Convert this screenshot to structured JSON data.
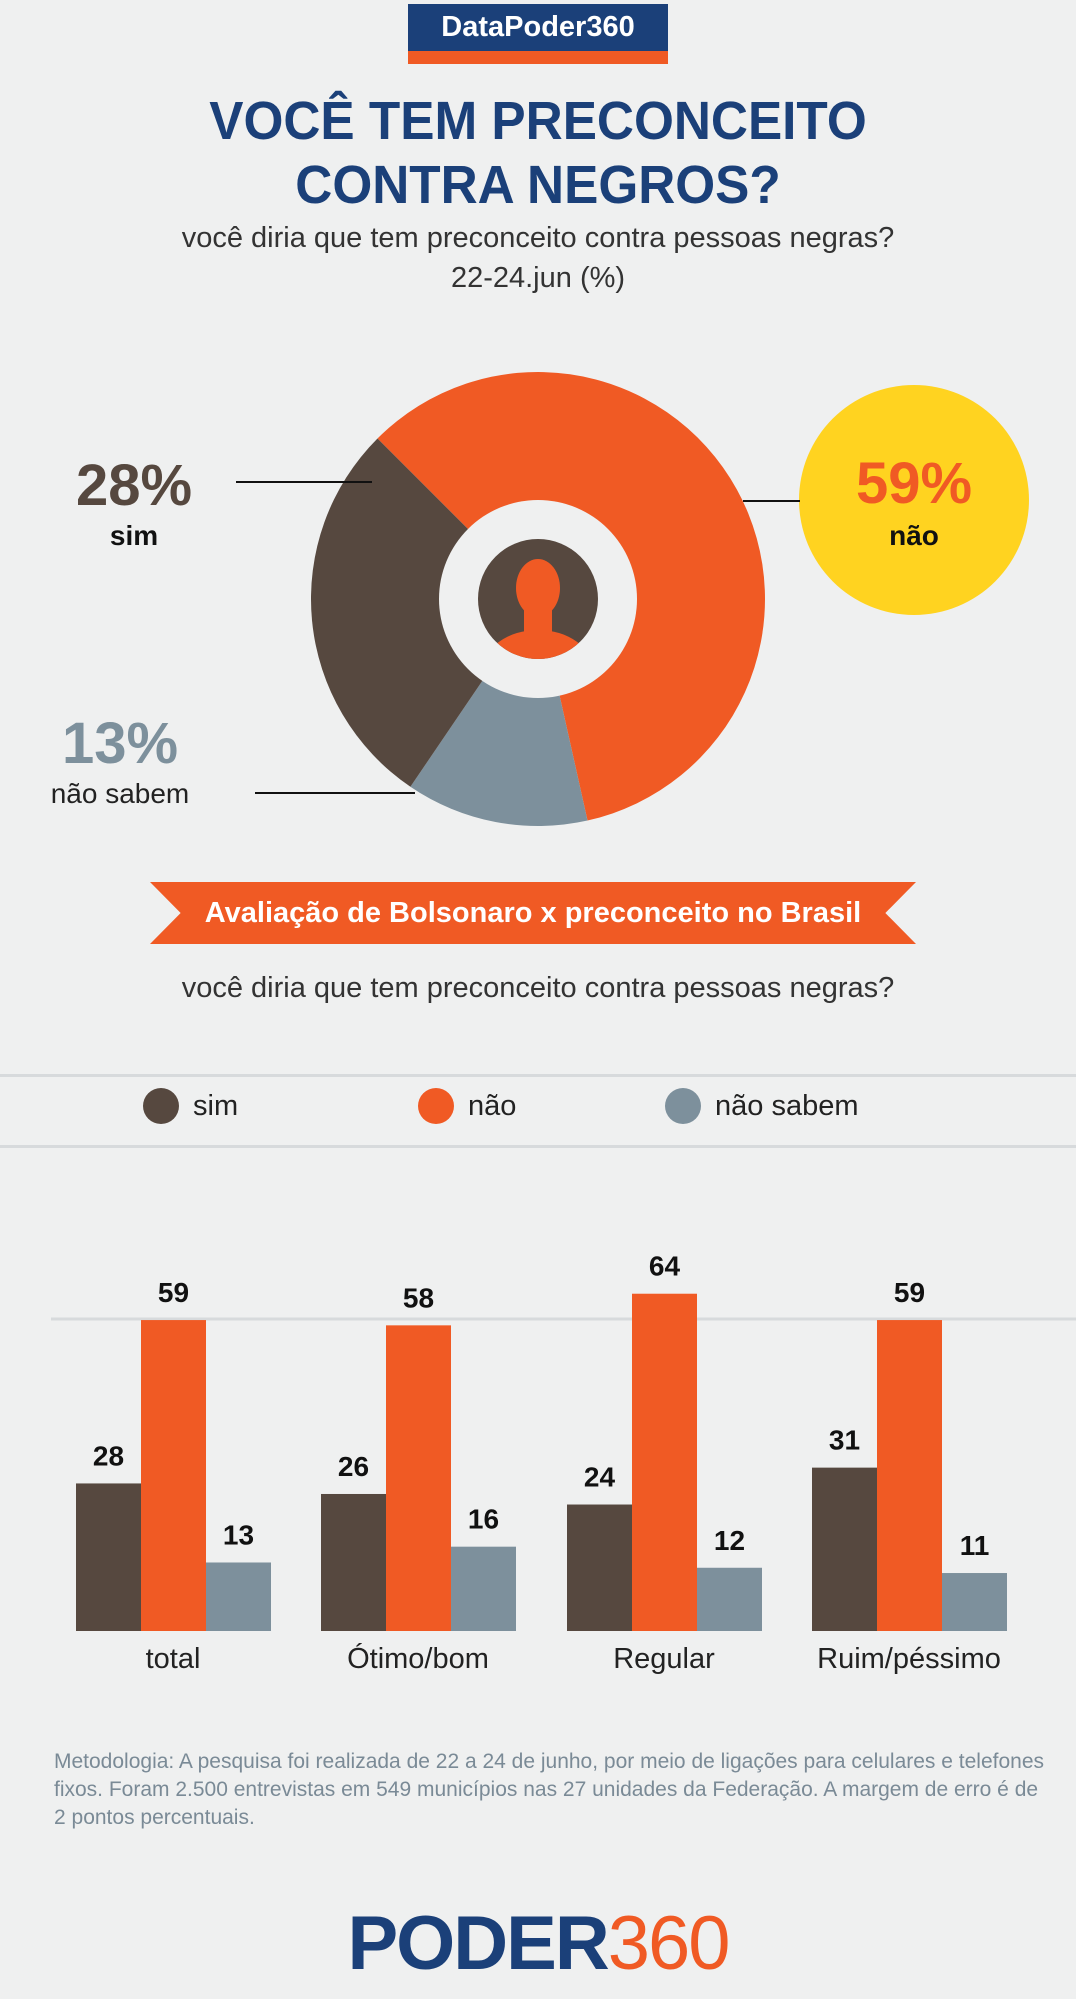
{
  "header": {
    "brand": "DataPoder360",
    "title_line1": "VOCÊ TEM PRECONCEITO",
    "title_line2": "CONTRA NEGROS?",
    "question": "você diria que tem preconceito contra pessoas negras?",
    "date": "22-24.jun (%)"
  },
  "colors": {
    "sim": "#56483f",
    "nao": "#f05a24",
    "nao_sabem": "#7d909c",
    "highlight": "#ffd320",
    "navy": "#1b4079"
  },
  "center_icon": "person-silhouette-icon",
  "section": {
    "banner": "Avaliação de Bolsonaro x preconceito no Brasil",
    "question": "você diria que tem preconceito contra pessoas negras?"
  },
  "footer": {
    "methodology": "Metodologia: A pesquisa foi realizada de 22 a 24 de junho, por meio de ligações  para celulares e telefones fixos. Foram 2.500 entrevistas em 549 municípios nas 27 unidades da Federação. A margem de erro é de 2 pontos percentuais.",
    "logo_part1": "PODER",
    "logo_part2": "360"
  },
  "chart_data": [
    {
      "type": "pie",
      "title": "VOCÊ TEM PRECONCEITO CONTRA NEGROS?",
      "slices": [
        {
          "key": "nao",
          "label": "não",
          "value": 59,
          "display": "59%"
        },
        {
          "key": "nao_sabem",
          "label": "não sabem",
          "value": 13,
          "display": "13%"
        },
        {
          "key": "sim",
          "label": "sim",
          "value": 28,
          "display": "28%"
        }
      ]
    },
    {
      "type": "bar",
      "title": "Avaliação de Bolsonaro x preconceito no Brasil",
      "categories": [
        "total",
        "Ótimo/bom",
        "Regular",
        "Ruim/péssimo"
      ],
      "legend": [
        "sim",
        "não",
        "não sabem"
      ],
      "legend_placement": "top",
      "series": [
        {
          "key": "sim",
          "name": "sim",
          "values": [
            28,
            26,
            24,
            31
          ]
        },
        {
          "key": "nao",
          "name": "não",
          "values": [
            59,
            58,
            64,
            59
          ]
        },
        {
          "key": "nao_sabem",
          "name": "não sabem",
          "values": [
            13,
            16,
            12,
            11
          ]
        }
      ],
      "ylim": [
        0,
        64
      ]
    }
  ]
}
